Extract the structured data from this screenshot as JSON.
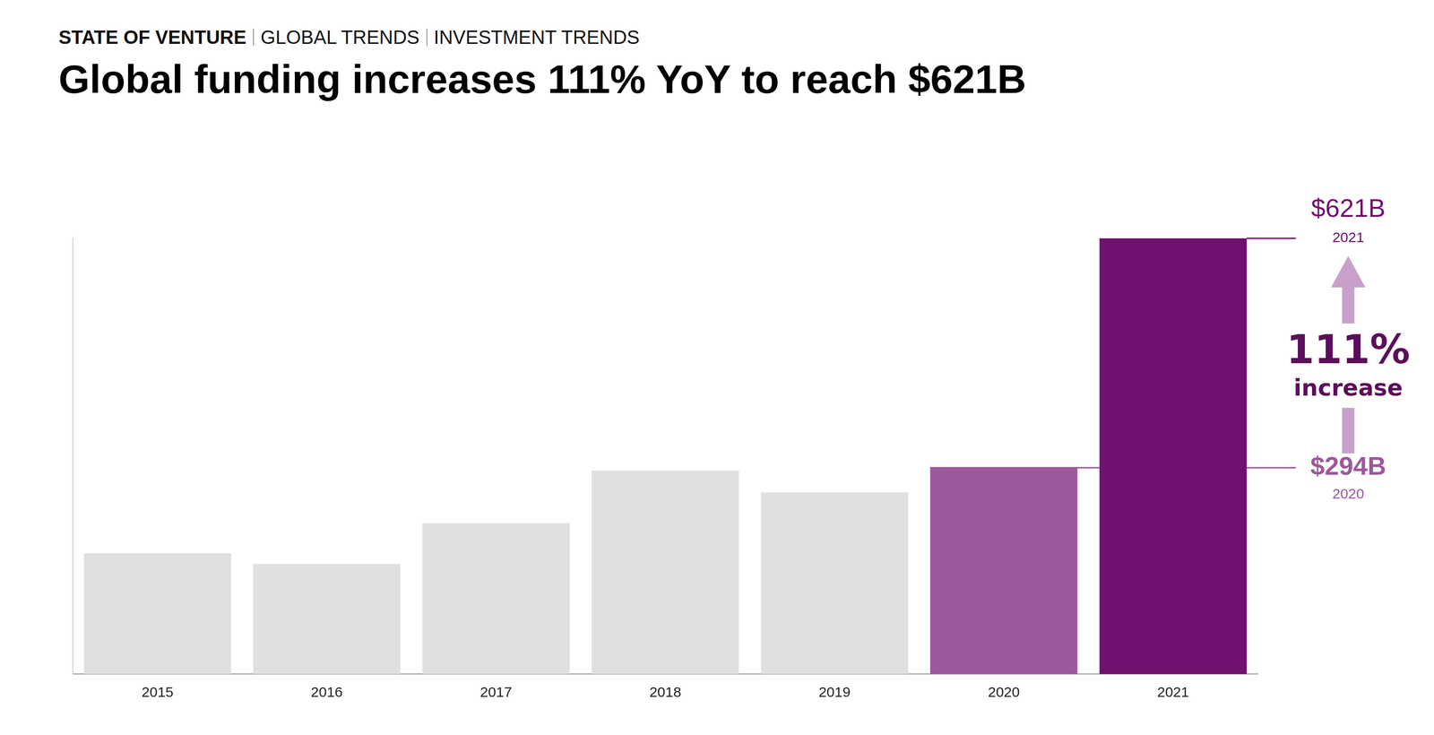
{
  "chart_data": {
    "type": "bar",
    "breadcrumb": [
      "STATE OF VENTURE",
      "GLOBAL TRENDS",
      "INVESTMENT TRENDS"
    ],
    "title": "Global funding increases 111% YoY to reach $621B",
    "categories": [
      "2015",
      "2016",
      "2017",
      "2018",
      "2019",
      "2020",
      "2021"
    ],
    "values": [
      172,
      157,
      215,
      290,
      259,
      294,
      621
    ],
    "colors": [
      "#e0e0e0",
      "#e0e0e0",
      "#e0e0e0",
      "#e0e0e0",
      "#e0e0e0",
      "#9c589c",
      "#701170"
    ],
    "ylim": [
      0,
      621
    ],
    "grid": false,
    "tick_labels": "x",
    "annotations": [
      {
        "label": "$621B",
        "category": "2021",
        "value": 621,
        "color": "#701170"
      },
      {
        "label": "$294B",
        "category": "2020",
        "value": 294,
        "color": "#9c589c"
      }
    ],
    "change": {
      "label": "111%",
      "text": "increase",
      "value": 111,
      "color": "#5a0f5a"
    }
  }
}
